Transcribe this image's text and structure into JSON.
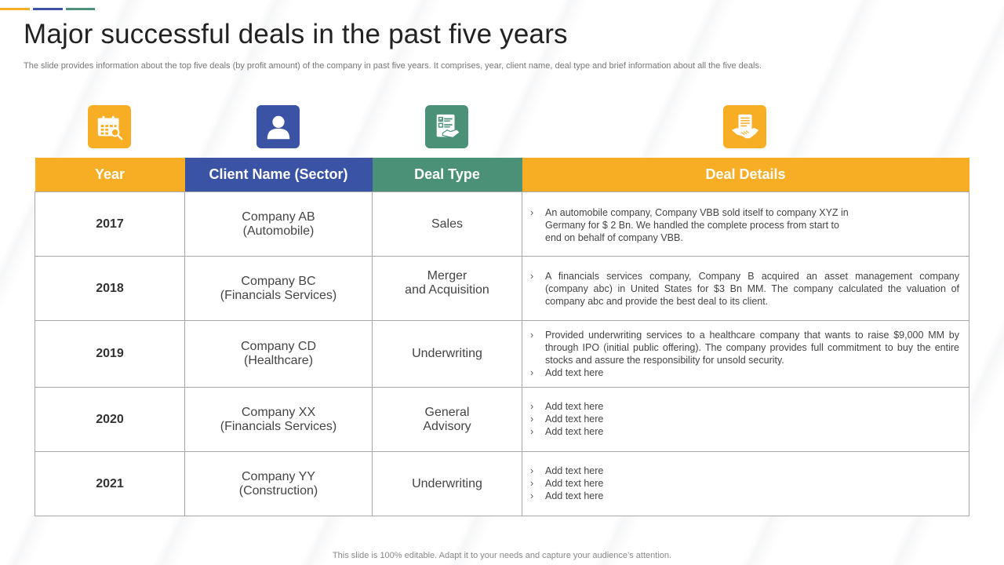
{
  "slide": {
    "title": "Major successful deals in the past five years",
    "subtitle": "The slide provides information about the top five deals (by profit amount) of the company in past five years. It comprises, year, client name, deal type and brief information about all the five deals.",
    "footer": "This slide is 100% editable. Adapt it to your needs and capture your audience’s attention."
  },
  "colors": {
    "orange": "#F7AE25",
    "blue": "#3A53A4",
    "teal": "#4A9178",
    "border": "#A7A7A7"
  },
  "icons": {
    "year": "calendar-search-icon",
    "client": "user-icon",
    "deal_type": "document-handshake-icon",
    "details": "handshake-icon"
  },
  "table": {
    "headers": {
      "year": "Year",
      "client": "Client Name (Sector)",
      "deal_type": "Deal Type",
      "details": "Deal Details"
    },
    "rows": [
      {
        "year": "2017",
        "client": "Company AB\n(Automobile)",
        "deal_type": "Sales",
        "details": [
          "An automobile company, Company VBB sold itself to company XYZ in\nGermany for $ 2 Bn. We handled the complete process from start to\nend on behalf of company VBB."
        ]
      },
      {
        "year": "2018",
        "client": "Company BC\n(Financials Services)",
        "deal_type": "Merger\nand Acquisition",
        "details": [
          "A financials services company, Company B acquired an asset management company (company abc) in United States for $3 Bn MM. The company calculated the valuation of company abc and provide the best deal to its client."
        ]
      },
      {
        "year": "2019",
        "client": "Company CD\n(Healthcare)",
        "deal_type": "Underwriting",
        "details": [
          "Provided underwriting services to a healthcare company that wants to raise $9,000 MM by through IPO (initial public offering). The company provides full commitment to buy the entire stocks and assure the responsibility for unsold security.",
          "Add text here"
        ]
      },
      {
        "year": "2020",
        "client": "Company XX\n(Financials Services)",
        "deal_type": "General\nAdvisory",
        "details": [
          "Add text here",
          "Add text here",
          "Add text here"
        ]
      },
      {
        "year": "2021",
        "client": "Company YY\n(Construction)",
        "deal_type": "Underwriting",
        "details": [
          "Add text here",
          "Add text here",
          "Add text here"
        ]
      }
    ]
  }
}
